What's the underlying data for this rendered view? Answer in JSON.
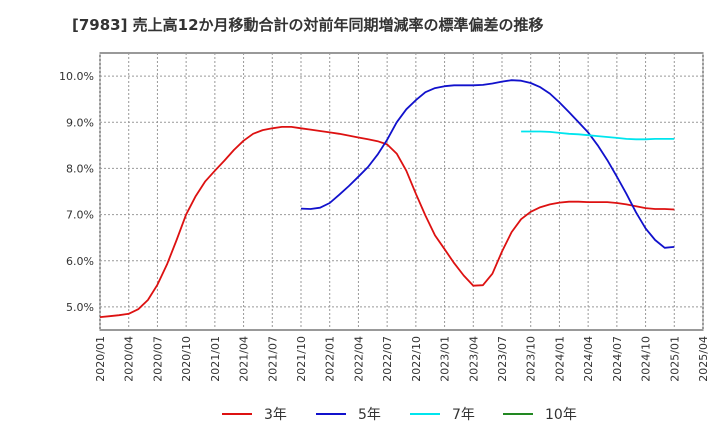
{
  "chart_data": {
    "type": "line",
    "title": "[7983]  売上高12か月移動合計の対前年同期増減率の標準偏差の推移",
    "xlabel": "",
    "ylabel": "",
    "grid": true,
    "legend_position": "bottom",
    "ylim": [
      4.5,
      10.5
    ],
    "y_ticks": [
      "5.0%",
      "6.0%",
      "7.0%",
      "8.0%",
      "9.0%",
      "10.0%"
    ],
    "y_tick_values": [
      5.0,
      6.0,
      7.0,
      8.0,
      9.0,
      10.0
    ],
    "x_ticks": [
      "2020/01",
      "2020/04",
      "2020/07",
      "2020/10",
      "2021/01",
      "2021/04",
      "2021/07",
      "2021/10",
      "2022/01",
      "2022/04",
      "2022/07",
      "2022/10",
      "2023/01",
      "2023/04",
      "2023/07",
      "2023/10",
      "2024/01",
      "2024/04",
      "2024/07",
      "2024/10",
      "2025/01",
      "2025/04"
    ],
    "x_start": "2020/01",
    "x_end": "2025/04",
    "series": [
      {
        "name": "3年",
        "color": "#dd1111",
        "x": [
          "2020/01",
          "2020/02",
          "2020/03",
          "2020/04",
          "2020/05",
          "2020/06",
          "2020/07",
          "2020/08",
          "2020/09",
          "2020/10",
          "2020/11",
          "2020/12",
          "2021/01",
          "2021/02",
          "2021/03",
          "2021/04",
          "2021/05",
          "2021/06",
          "2021/07",
          "2021/08",
          "2021/09",
          "2021/10",
          "2021/11",
          "2021/12",
          "2022/01",
          "2022/02",
          "2022/03",
          "2022/04",
          "2022/05",
          "2022/06",
          "2022/07",
          "2022/08",
          "2022/09",
          "2022/10",
          "2022/11",
          "2022/12",
          "2023/01",
          "2023/02",
          "2023/03",
          "2023/04",
          "2023/05",
          "2023/06",
          "2023/07",
          "2023/08",
          "2023/09",
          "2023/10",
          "2023/11",
          "2023/12",
          "2024/01",
          "2024/02",
          "2024/03",
          "2024/04",
          "2024/05",
          "2024/06",
          "2024/07",
          "2024/08",
          "2024/09",
          "2024/10",
          "2024/11",
          "2024/12",
          "2025/01"
        ],
        "values": [
          4.78,
          4.8,
          4.82,
          4.85,
          4.95,
          5.15,
          5.48,
          5.92,
          6.45,
          7.0,
          7.4,
          7.72,
          7.95,
          8.17,
          8.4,
          8.6,
          8.75,
          8.83,
          8.87,
          8.9,
          8.9,
          8.87,
          8.84,
          8.81,
          8.78,
          8.75,
          8.71,
          8.67,
          8.63,
          8.59,
          8.52,
          8.32,
          7.95,
          7.45,
          6.98,
          6.55,
          6.25,
          5.95,
          5.68,
          5.46,
          5.47,
          5.72,
          6.2,
          6.62,
          6.9,
          7.06,
          7.16,
          7.22,
          7.26,
          7.28,
          7.28,
          7.27,
          7.27,
          7.27,
          7.25,
          7.22,
          7.18,
          7.14,
          7.12,
          7.12,
          7.11
        ]
      },
      {
        "name": "5年",
        "color": "#1111cc",
        "x": [
          "2021/10",
          "2021/11",
          "2021/12",
          "2022/01",
          "2022/02",
          "2022/03",
          "2022/04",
          "2022/05",
          "2022/06",
          "2022/07",
          "2022/08",
          "2022/09",
          "2022/10",
          "2022/11",
          "2022/12",
          "2023/01",
          "2023/02",
          "2023/03",
          "2023/04",
          "2023/05",
          "2023/06",
          "2023/07",
          "2023/08",
          "2023/09",
          "2023/10",
          "2023/11",
          "2023/12",
          "2024/01",
          "2024/02",
          "2024/03",
          "2024/04",
          "2024/05",
          "2024/06",
          "2024/07",
          "2024/08",
          "2024/09",
          "2024/10",
          "2024/11",
          "2024/12",
          "2025/01"
        ],
        "values": [
          7.13,
          7.12,
          7.15,
          7.25,
          7.43,
          7.62,
          7.82,
          8.03,
          8.3,
          8.62,
          9.0,
          9.28,
          9.48,
          9.65,
          9.74,
          9.78,
          9.8,
          9.8,
          9.8,
          9.81,
          9.84,
          9.88,
          9.91,
          9.9,
          9.85,
          9.76,
          9.62,
          9.43,
          9.22,
          9.0,
          8.78,
          8.5,
          8.18,
          7.82,
          7.45,
          7.05,
          6.7,
          6.45,
          6.28,
          6.3
        ]
      },
      {
        "name": "7年",
        "color": "#00e5ee",
        "x": [
          "2023/09",
          "2023/10",
          "2023/11",
          "2023/12",
          "2024/01",
          "2024/02",
          "2024/03",
          "2024/04",
          "2024/05",
          "2024/06",
          "2024/07",
          "2024/08",
          "2024/09",
          "2024/10",
          "2024/11",
          "2024/12",
          "2025/01"
        ],
        "values": [
          8.8,
          8.8,
          8.8,
          8.79,
          8.77,
          8.75,
          8.74,
          8.72,
          8.7,
          8.68,
          8.66,
          8.64,
          8.63,
          8.63,
          8.64,
          8.64,
          8.64
        ]
      },
      {
        "name": "10年",
        "color": "#228822",
        "x": [],
        "values": []
      }
    ]
  }
}
